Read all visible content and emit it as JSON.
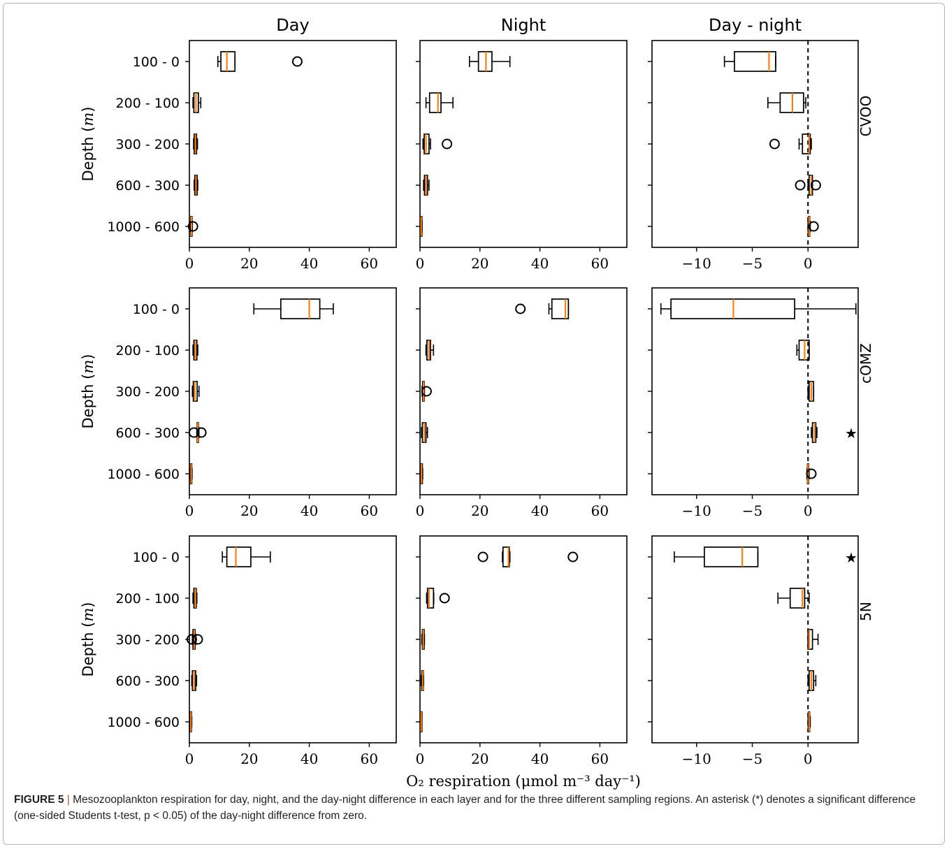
{
  "figure": {
    "col_titles": [
      "Day",
      "Night",
      "Day - night"
    ],
    "row_labels": [
      "CVOO",
      "cOMZ",
      "5N"
    ],
    "ylabel_text": "Depth",
    "ylabel_unit": "m",
    "xlabel": "O₂ respiration (μmol m⁻³ day⁻¹)",
    "significance_marker": "★"
  },
  "caption": {
    "label": "FIGURE 5",
    "separator": "|",
    "text": " Mesozooplankton respiration for day, night, and the day-night difference in each layer and for the three different sampling regions. An asterisk (*) denotes a significant difference (one-sided Students t-test, p < 0.05) of the day-night difference from zero."
  },
  "chart_data": {
    "type": "boxplot",
    "orientation": "horizontal",
    "depth_layers": [
      "100 - 0",
      "200 - 100",
      "300 - 200",
      "600 - 300",
      "1000 - 600"
    ],
    "columns": [
      {
        "title": "Day",
        "xlim": [
          0,
          69
        ],
        "xticks": [
          0,
          20,
          40,
          60
        ],
        "zero_line": false
      },
      {
        "title": "Night",
        "xlim": [
          0,
          69
        ],
        "xticks": [
          0,
          20,
          40,
          60
        ],
        "zero_line": false
      },
      {
        "title": "Day - night",
        "xlim": [
          -14,
          4.5
        ],
        "xticks": [
          -10,
          -5,
          0
        ],
        "xtick_labels": [
          "−10",
          "−5",
          "0"
        ],
        "zero_line": true
      }
    ],
    "colors": {
      "box": "#000000",
      "median": "#ff7f0e",
      "zero_line": "#000000"
    },
    "rows": [
      {
        "region": "CVOO",
        "panels": [
          {
            "boxes": [
              {
                "wlo": 9.5,
                "q1": 10.5,
                "med": 12.5,
                "q3": 15.2,
                "whi": 15.2,
                "fliers": [
                  36
                ]
              },
              {
                "wlo": 1.2,
                "q1": 1.5,
                "med": 2.2,
                "q3": 3.0,
                "whi": 3.8,
                "fliers": []
              },
              {
                "wlo": 1.4,
                "q1": 1.6,
                "med": 2.0,
                "q3": 2.4,
                "whi": 2.7,
                "fliers": []
              },
              {
                "wlo": 1.6,
                "q1": 1.8,
                "med": 2.2,
                "q3": 2.6,
                "whi": 2.8,
                "fliers": []
              },
              {
                "wlo": 0.3,
                "q1": 0.5,
                "med": 0.7,
                "q3": 0.9,
                "whi": 1.0,
                "fliers": [
                  1.2
                ]
              }
            ],
            "stars": []
          },
          {
            "boxes": [
              {
                "wlo": 16.5,
                "q1": 19.5,
                "med": 22.0,
                "q3": 24.0,
                "whi": 30.0,
                "fliers": []
              },
              {
                "wlo": 2.0,
                "q1": 3.2,
                "med": 6.0,
                "q3": 7.0,
                "whi": 11.0,
                "fliers": []
              },
              {
                "wlo": 1.0,
                "q1": 1.4,
                "med": 2.0,
                "q3": 3.0,
                "whi": 3.5,
                "fliers": [
                  9
                ]
              },
              {
                "wlo": 1.2,
                "q1": 1.5,
                "med": 2.0,
                "q3": 2.5,
                "whi": 3.0,
                "fliers": []
              },
              {
                "wlo": 0.2,
                "q1": 0.3,
                "med": 0.4,
                "q3": 0.6,
                "whi": 0.7,
                "fliers": []
              }
            ],
            "stars": []
          },
          {
            "boxes": [
              {
                "wlo": -7.5,
                "q1": -6.6,
                "med": -3.5,
                "q3": -2.9,
                "whi": -2.9,
                "fliers": []
              },
              {
                "wlo": -3.6,
                "q1": -2.5,
                "med": -1.4,
                "q3": -0.4,
                "whi": -0.2,
                "fliers": []
              },
              {
                "wlo": -0.8,
                "q1": -0.5,
                "med": 0.1,
                "q3": 0.2,
                "whi": 0.3,
                "fliers": [
                  -3.0
                ]
              },
              {
                "wlo": 0.0,
                "q1": 0.1,
                "med": 0.3,
                "q3": 0.4,
                "whi": 0.4,
                "fliers": [
                  -0.7,
                  0.7
                ]
              },
              {
                "wlo": 0.0,
                "q1": 0.05,
                "med": 0.1,
                "q3": 0.15,
                "whi": 0.2,
                "fliers": [
                  0.5
                ]
              }
            ],
            "stars": []
          }
        ]
      },
      {
        "region": "cOMZ",
        "panels": [
          {
            "boxes": [
              {
                "wlo": 21.5,
                "q1": 30.5,
                "med": 40.0,
                "q3": 43.5,
                "whi": 48.0,
                "fliers": []
              },
              {
                "wlo": 1.2,
                "q1": 1.5,
                "med": 2.0,
                "q3": 2.5,
                "whi": 2.8,
                "fliers": []
              },
              {
                "wlo": 1.0,
                "q1": 1.3,
                "med": 1.8,
                "q3": 2.6,
                "whi": 3.2,
                "fliers": []
              },
              {
                "wlo": 2.5,
                "q1": 2.6,
                "med": 2.8,
                "q3": 3.0,
                "whi": 3.2,
                "fliers": [
                  1.5,
                  4.0
                ]
              },
              {
                "wlo": 0.3,
                "q1": 0.4,
                "med": 0.6,
                "q3": 0.8,
                "whi": 0.9,
                "fliers": []
              }
            ],
            "stars": []
          },
          {
            "boxes": [
              {
                "wlo": 43.0,
                "q1": 44.0,
                "med": 48.5,
                "q3": 49.5,
                "whi": 49.5,
                "fliers": [
                  33.5
                ]
              },
              {
                "wlo": 2.0,
                "q1": 2.3,
                "med": 3.0,
                "q3": 3.5,
                "whi": 4.5,
                "fliers": []
              },
              {
                "wlo": 0.7,
                "q1": 0.9,
                "med": 1.2,
                "q3": 1.4,
                "whi": 1.5,
                "fliers": [
                  2.2
                ]
              },
              {
                "wlo": 0.5,
                "q1": 0.8,
                "med": 1.5,
                "q3": 2.0,
                "whi": 2.5,
                "fliers": []
              },
              {
                "wlo": 0.2,
                "q1": 0.3,
                "med": 0.5,
                "q3": 0.8,
                "whi": 0.9,
                "fliers": []
              }
            ],
            "stars": []
          },
          {
            "boxes": [
              {
                "wlo": -13.2,
                "q1": -12.3,
                "med": -6.7,
                "q3": -1.2,
                "whi": 4.3,
                "fliers": []
              },
              {
                "wlo": -1.0,
                "q1": -0.8,
                "med": -0.3,
                "q3": 0.1,
                "whi": 0.1,
                "fliers": []
              },
              {
                "wlo": 0.0,
                "q1": 0.1,
                "med": 0.3,
                "q3": 0.5,
                "whi": 0.5,
                "fliers": []
              },
              {
                "wlo": 0.3,
                "q1": 0.4,
                "med": 0.6,
                "q3": 0.7,
                "whi": 0.8,
                "fliers": []
              },
              {
                "wlo": -0.1,
                "q1": -0.05,
                "med": 0.0,
                "q3": 0.05,
                "whi": 0.1,
                "fliers": [
                  0.3
                ]
              }
            ],
            "stars": [
              {
                "layer": 3
              }
            ]
          }
        ]
      },
      {
        "region": "5N",
        "panels": [
          {
            "boxes": [
              {
                "wlo": 11.0,
                "q1": 12.5,
                "med": 15.5,
                "q3": 20.5,
                "whi": 27.0,
                "fliers": []
              },
              {
                "wlo": 1.2,
                "q1": 1.5,
                "med": 2.0,
                "q3": 2.3,
                "whi": 2.5,
                "fliers": []
              },
              {
                "wlo": 1.0,
                "q1": 1.2,
                "med": 1.6,
                "q3": 1.9,
                "whi": 2.2,
                "fliers": [
                  0.8,
                  2.8
                ]
              },
              {
                "wlo": 0.8,
                "q1": 1.0,
                "med": 1.6,
                "q3": 2.1,
                "whi": 2.4,
                "fliers": []
              },
              {
                "wlo": 0.2,
                "q1": 0.3,
                "med": 0.5,
                "q3": 0.7,
                "whi": 0.8,
                "fliers": []
              }
            ],
            "stars": []
          },
          {
            "boxes": [
              {
                "wlo": 27.5,
                "q1": 27.7,
                "med": 29.5,
                "q3": 29.8,
                "whi": 30.0,
                "fliers": [
                  21,
                  51
                ]
              },
              {
                "wlo": 2.2,
                "q1": 2.5,
                "med": 3.0,
                "q3": 4.5,
                "whi": 4.6,
                "fliers": [
                  8.2
                ]
              },
              {
                "wlo": 0.6,
                "q1": 0.8,
                "med": 1.1,
                "q3": 1.4,
                "whi": 1.5,
                "fliers": []
              },
              {
                "wlo": 0.4,
                "q1": 0.6,
                "med": 0.9,
                "q3": 1.1,
                "whi": 1.2,
                "fliers": []
              },
              {
                "wlo": 0.2,
                "q1": 0.3,
                "med": 0.4,
                "q3": 0.5,
                "whi": 0.6,
                "fliers": []
              }
            ],
            "stars": []
          },
          {
            "boxes": [
              {
                "wlo": -12.0,
                "q1": -9.3,
                "med": -5.9,
                "q3": -4.5,
                "whi": -4.5,
                "fliers": []
              },
              {
                "wlo": -2.7,
                "q1": -1.6,
                "med": -0.5,
                "q3": -0.3,
                "whi": 0.1,
                "fliers": []
              },
              {
                "wlo": 0.0,
                "q1": 0.0,
                "med": 0.1,
                "q3": 0.4,
                "whi": 0.9,
                "fliers": []
              },
              {
                "wlo": 0.0,
                "q1": 0.1,
                "med": 0.3,
                "q3": 0.5,
                "whi": 0.7,
                "fliers": []
              },
              {
                "wlo": 0.0,
                "q1": 0.05,
                "med": 0.1,
                "q3": 0.15,
                "whi": 0.2,
                "fliers": []
              }
            ],
            "stars": [
              {
                "layer": 0
              }
            ]
          }
        ]
      }
    ]
  }
}
